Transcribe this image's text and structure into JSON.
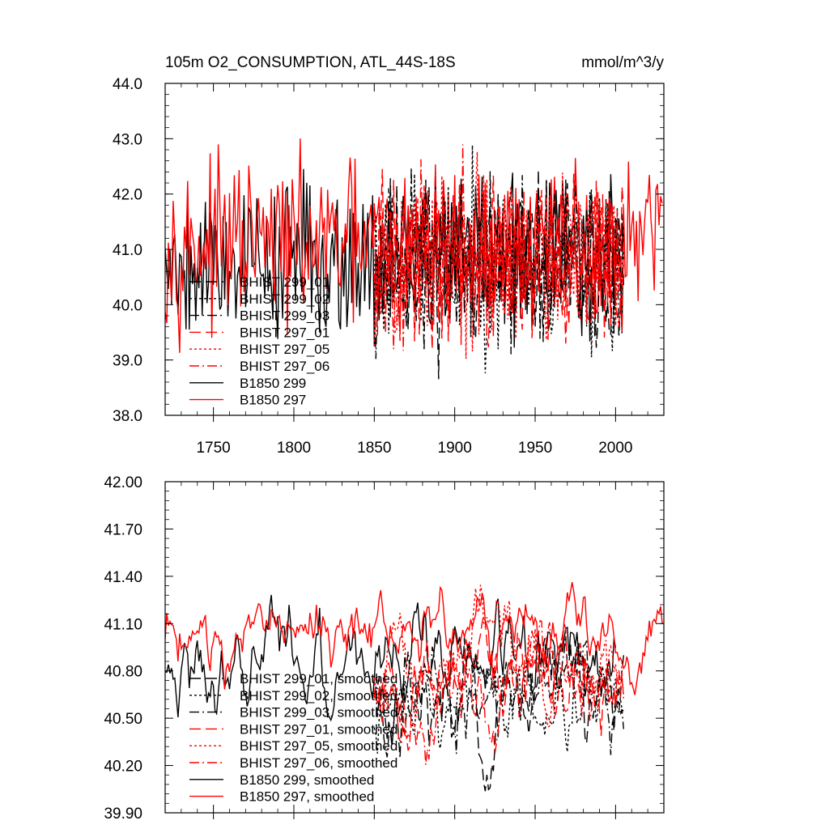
{
  "chart_data": [
    {
      "type": "line",
      "title": "105m O2_CONSUMPTION, ATL_44S-18S",
      "units": "mmol/m^3/y",
      "xlim": [
        1720,
        2030
      ],
      "ylim": [
        38.0,
        44.0
      ],
      "x_ticks": [
        1750,
        1800,
        1850,
        1900,
        1950,
        2000
      ],
      "y_ticks": [
        "38.0",
        "39.0",
        "40.0",
        "41.0",
        "42.0",
        "43.0",
        "44.0"
      ],
      "legend_position": "lower-left",
      "series": [
        {
          "name": "BHIST 299_01",
          "color": "#000000",
          "dash": "long-dash",
          "x_start": 1850,
          "x_end": 2005,
          "mean": 40.75,
          "sd": 0.85,
          "seed": 11
        },
        {
          "name": "BHIST 299_02",
          "color": "#000000",
          "dash": "dot",
          "x_start": 1850,
          "x_end": 2005,
          "mean": 40.75,
          "sd": 0.85,
          "seed": 23
        },
        {
          "name": "BHIST 299_03",
          "color": "#000000",
          "dash": "dash-dot",
          "x_start": 1850,
          "x_end": 2005,
          "mean": 40.75,
          "sd": 0.85,
          "seed": 37
        },
        {
          "name": "BHIST 297_01",
          "color": "#ff0000",
          "dash": "long-dash",
          "x_start": 1850,
          "x_end": 2005,
          "mean": 40.85,
          "sd": 0.85,
          "seed": 41
        },
        {
          "name": "BHIST 297_05",
          "color": "#ff0000",
          "dash": "dot",
          "x_start": 1850,
          "x_end": 2005,
          "mean": 40.85,
          "sd": 0.85,
          "seed": 53
        },
        {
          "name": "BHIST 297_06",
          "color": "#ff0000",
          "dash": "dash-dot",
          "x_start": 1850,
          "x_end": 2005,
          "mean": 40.85,
          "sd": 0.85,
          "seed": 67
        },
        {
          "name": "B1850 299",
          "color": "#000000",
          "dash": "solid",
          "x_start": 1720,
          "x_end": 2005,
          "mean": 40.85,
          "sd": 0.8,
          "seed": 79
        },
        {
          "name": "B1850 297",
          "color": "#ff0000",
          "dash": "solid",
          "x_start": 1720,
          "x_end": 2029,
          "mean": 41.1,
          "sd": 0.75,
          "seed": 97
        }
      ]
    },
    {
      "type": "line",
      "title": "",
      "xlim": [
        1720,
        2030
      ],
      "ylim": [
        39.9,
        42.0
      ],
      "x_ticks": [
        1750,
        1800,
        1850,
        1900,
        1950,
        2000
      ],
      "y_ticks": [
        "39.90",
        "40.20",
        "40.50",
        "40.80",
        "41.10",
        "41.40",
        "41.70",
        "42.00"
      ],
      "legend_position": "lower-left",
      "series": [
        {
          "name": "BHIST 299_01, smoothed",
          "color": "#000000",
          "dash": "long-dash",
          "x_start": 1850,
          "x_end": 2005,
          "mean": 40.65,
          "sd": 0.32,
          "seed": 111
        },
        {
          "name": "BHIST 299_02, smoothed",
          "color": "#000000",
          "dash": "dot",
          "x_start": 1850,
          "x_end": 2005,
          "mean": 40.6,
          "sd": 0.32,
          "seed": 123
        },
        {
          "name": "BHIST 299_03, smoothed",
          "color": "#000000",
          "dash": "dash-dot",
          "x_start": 1850,
          "x_end": 2005,
          "mean": 40.65,
          "sd": 0.32,
          "seed": 137
        },
        {
          "name": "BHIST 297_01, smoothed",
          "color": "#ff0000",
          "dash": "long-dash",
          "x_start": 1850,
          "x_end": 2005,
          "mean": 40.8,
          "sd": 0.3,
          "seed": 141
        },
        {
          "name": "BHIST 297_05, smoothed",
          "color": "#ff0000",
          "dash": "dot",
          "x_start": 1850,
          "x_end": 2005,
          "mean": 40.85,
          "sd": 0.3,
          "seed": 153
        },
        {
          "name": "BHIST 297_06, smoothed",
          "color": "#ff0000",
          "dash": "dash-dot",
          "x_start": 1850,
          "x_end": 2005,
          "mean": 40.75,
          "sd": 0.3,
          "seed": 167
        },
        {
          "name": "B1850 299, smoothed",
          "color": "#000000",
          "dash": "solid",
          "x_start": 1720,
          "x_end": 2000,
          "mean": 40.85,
          "sd": 0.28,
          "seed": 179
        },
        {
          "name": "B1850 297, smoothed",
          "color": "#ff0000",
          "dash": "solid",
          "x_start": 1720,
          "x_end": 2029,
          "mean": 41.05,
          "sd": 0.22,
          "seed": 197
        }
      ]
    }
  ]
}
